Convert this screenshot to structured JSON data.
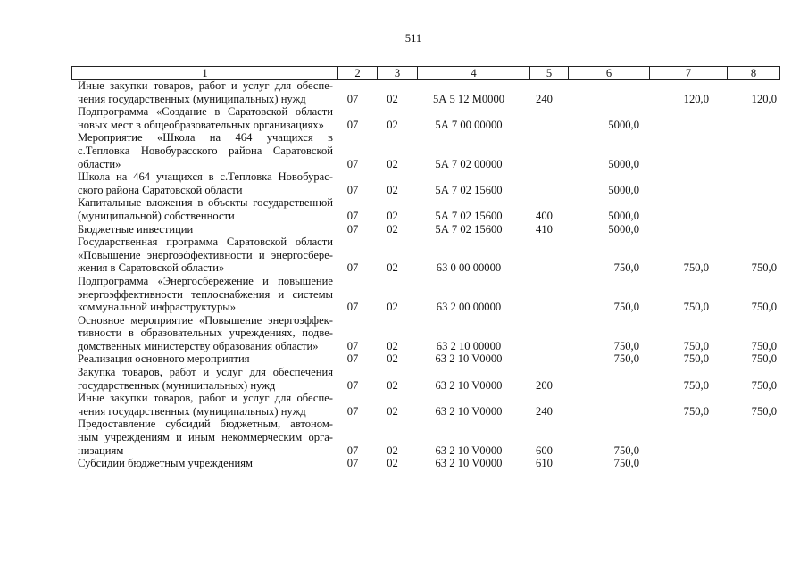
{
  "page_number": "511",
  "headers": [
    "1",
    "2",
    "3",
    "4",
    "5",
    "6",
    "7",
    "8"
  ],
  "rows": [
    {
      "lines": [
        "Иные закупки товаров, работ и услуг для обеспе-",
        "чения государственных (муниципальных) нужд"
      ],
      "c2": "07",
      "c3": "02",
      "c4": "5А 5 12 М0000",
      "c5": "240",
      "c6": "",
      "c7": "120,0",
      "c8": "120,0"
    },
    {
      "lines": [
        "Подпрограмма «Создание в Саратовской области",
        "новых мест в общеобразовательных организациях»"
      ],
      "c2": "07",
      "c3": "02",
      "c4": "5А 7 00 00000",
      "c5": "",
      "c6": "5000,0",
      "c7": "",
      "c8": ""
    },
    {
      "lines": [
        "Мероприятие «Школа на 464 учащихся в",
        "с.Тепловка Новобурасского района Саратовской",
        "области»"
      ],
      "c2": "07",
      "c3": "02",
      "c4": "5А 7 02 00000",
      "c5": "",
      "c6": "5000,0",
      "c7": "",
      "c8": ""
    },
    {
      "lines": [
        "Школа на 464 учащихся в с.Тепловка Новобурас-",
        "ского района Саратовской области"
      ],
      "c2": "07",
      "c3": "02",
      "c4": "5А 7 02 15600",
      "c5": "",
      "c6": "5000,0",
      "c7": "",
      "c8": ""
    },
    {
      "lines": [
        "Капитальные вложения в объекты государственной",
        "(муниципальной) собственности"
      ],
      "c2": "07",
      "c3": "02",
      "c4": "5А 7 02 15600",
      "c5": "400",
      "c6": "5000,0",
      "c7": "",
      "c8": ""
    },
    {
      "lines": [
        "Бюджетные инвестиции"
      ],
      "c2": "07",
      "c3": "02",
      "c4": "5А 7 02 15600",
      "c5": "410",
      "c6": "5000,0",
      "c7": "",
      "c8": ""
    },
    {
      "lines": [
        "Государственная программа Саратовской области",
        "«Повышение энергоэффективности и энергосбере-",
        "жения в Саратовской области»"
      ],
      "c2": "07",
      "c3": "02",
      "c4": "63 0 00 00000",
      "c5": "",
      "c6": "750,0",
      "c7": "750,0",
      "c8": "750,0"
    },
    {
      "lines": [
        "Подпрограмма «Энергосбережение и повышение",
        "энергоэффективности теплоснабжения и системы",
        "коммунальной инфраструктуры»"
      ],
      "c2": "07",
      "c3": "02",
      "c4": "63 2 00 00000",
      "c5": "",
      "c6": "750,0",
      "c7": "750,0",
      "c8": "750,0"
    },
    {
      "lines": [
        "Основное мероприятие «Повышение энергоэффек-",
        "тивности в образовательных учреждениях, подве-",
        "домственных министерству образования области»"
      ],
      "c2": "07",
      "c3": "02",
      "c4": "63 2 10 00000",
      "c5": "",
      "c6": "750,0",
      "c7": "750,0",
      "c8": "750,0"
    },
    {
      "lines": [
        "Реализация основного мероприятия"
      ],
      "c2": "07",
      "c3": "02",
      "c4": "63 2 10 V0000",
      "c5": "",
      "c6": "750,0",
      "c7": "750,0",
      "c8": "750,0"
    },
    {
      "lines": [
        "Закупка товаров, работ и услуг для обеспечения",
        "государственных (муниципальных) нужд"
      ],
      "c2": "07",
      "c3": "02",
      "c4": "63 2 10 V0000",
      "c5": "200",
      "c6": "",
      "c7": "750,0",
      "c8": "750,0"
    },
    {
      "lines": [
        "Иные закупки товаров, работ и услуг для обеспе-",
        "чения государственных (муниципальных) нужд"
      ],
      "c2": "07",
      "c3": "02",
      "c4": "63 2 10 V0000",
      "c5": "240",
      "c6": "",
      "c7": "750,0",
      "c8": "750,0"
    },
    {
      "lines": [
        "Предоставление субсидий бюджетным, автоном-",
        "ным учреждениям и иным некоммерческим орга-",
        "низациям"
      ],
      "c2": "07",
      "c3": "02",
      "c4": "63 2 10 V0000",
      "c5": "600",
      "c6": "750,0",
      "c7": "",
      "c8": ""
    },
    {
      "lines": [
        "Субсидии бюджетным учреждениям"
      ],
      "c2": "07",
      "c3": "02",
      "c4": "63 2 10 V0000",
      "c5": "610",
      "c6": "750,0",
      "c7": "",
      "c8": ""
    }
  ]
}
